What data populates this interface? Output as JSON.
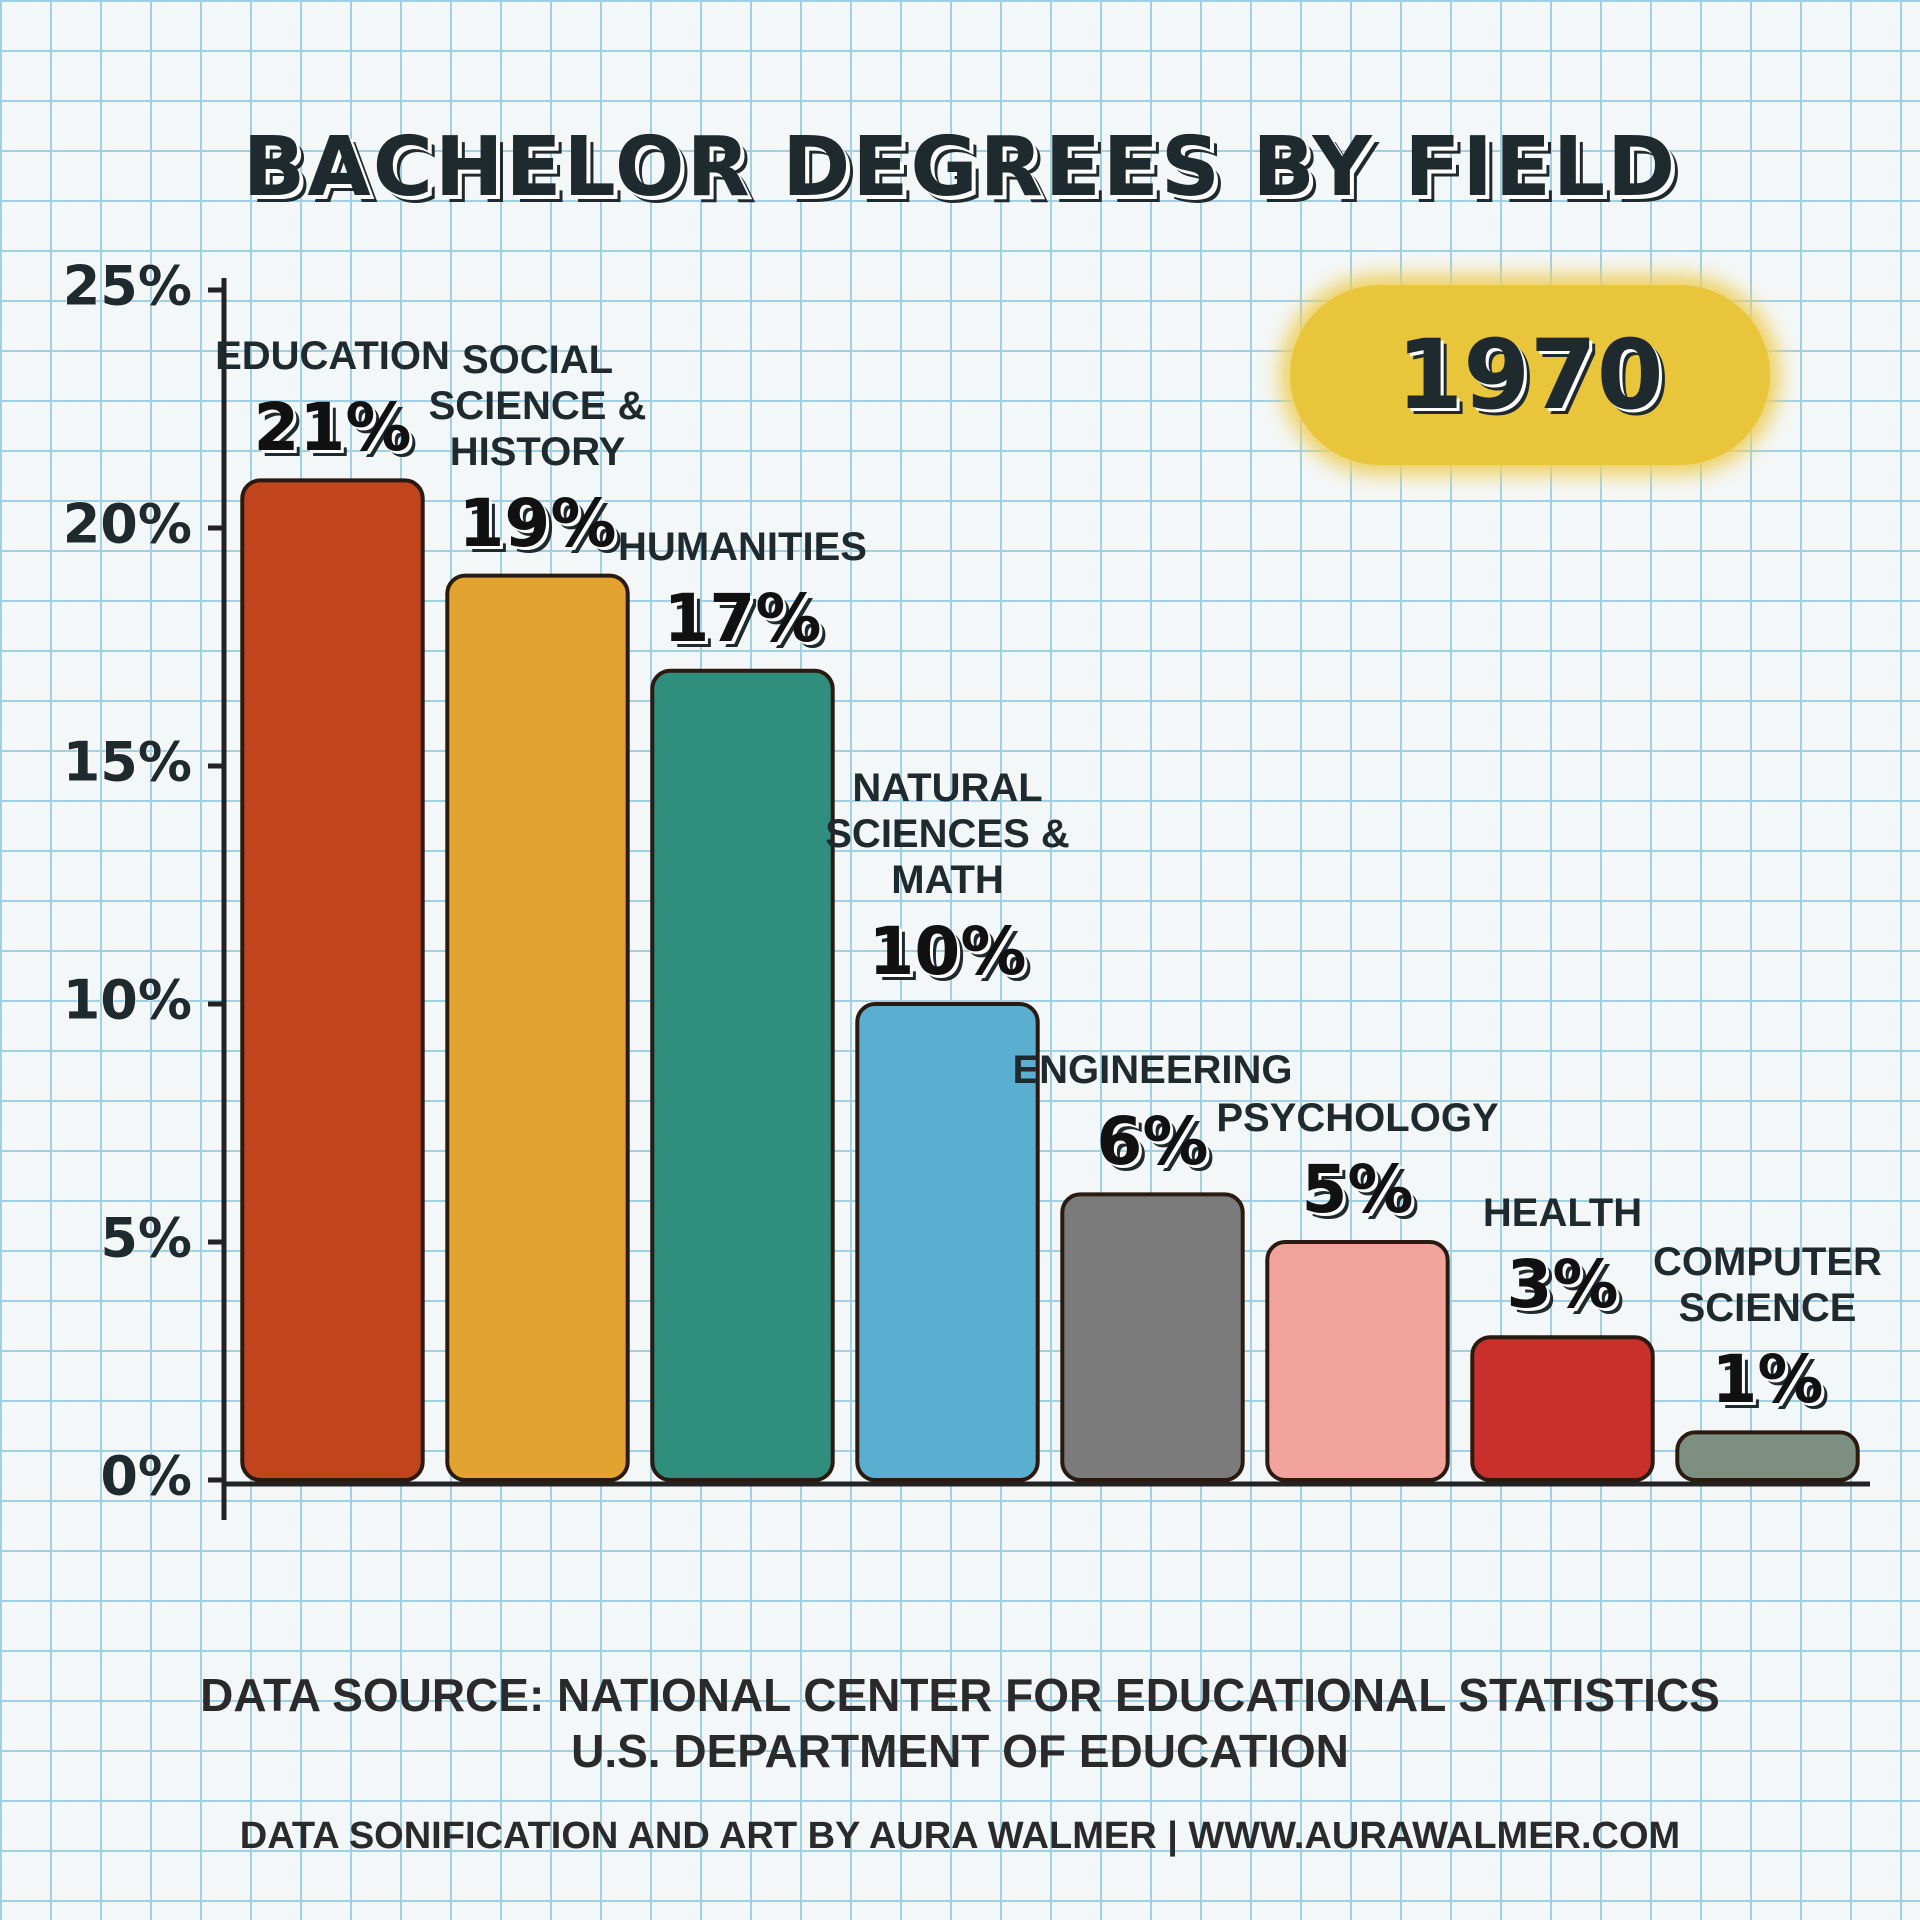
{
  "chart_data": {
    "type": "bar",
    "title": "BACHELOR DEGREES BY FIELD",
    "annotation": "1970",
    "categories": [
      "EDUCATION",
      "SOCIAL SCIENCE & HISTORY",
      "HUMANITIES",
      "NATURAL SCIENCES & MATH",
      "ENGINEERING",
      "PSYCHOLOGY",
      "HEALTH",
      "COMPUTER SCIENCE"
    ],
    "values": [
      21,
      19,
      17,
      10,
      6,
      5,
      3,
      1
    ],
    "value_labels": [
      "21%",
      "19%",
      "17%",
      "10%",
      "6%",
      "5%",
      "3%",
      "1%"
    ],
    "colors": [
      "#c0441c",
      "#e3a330",
      "#2f8f7c",
      "#5aaed0",
      "#7b7b7b",
      "#f2a39b",
      "#c9302c",
      "#7d8f80"
    ],
    "ylim": [
      0,
      25
    ],
    "yticks": [
      {
        "value": 0,
        "label": "0%"
      },
      {
        "value": 5,
        "label": "5%"
      },
      {
        "value": 10,
        "label": "10%"
      },
      {
        "value": 15,
        "label": "15%"
      },
      {
        "value": 20,
        "label": "20%"
      },
      {
        "value": 25,
        "label": "25%"
      }
    ],
    "source": [
      "DATA SOURCE: NATIONAL CENTER FOR EDUCATIONAL STATISTICS",
      "U.S. DEPARTMENT OF EDUCATION"
    ],
    "credit": "DATA SONIFICATION AND ART BY AURA WALMER | WWW.AURAWALMER.COM"
  }
}
